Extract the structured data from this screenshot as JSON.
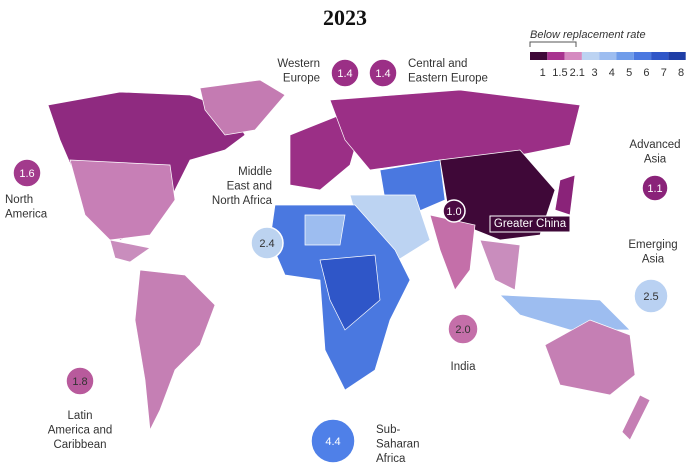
{
  "title": "2023",
  "legend": {
    "caption": "Below replacement rate",
    "colors": [
      "#3f0838",
      "#a8338f",
      "#d58ac0",
      "#bcd3f2",
      "#9dbdf0",
      "#6f9cea",
      "#4a78e0",
      "#2f56c8",
      "#1f3ea6"
    ],
    "labels": [
      "1",
      "1.5",
      "2.1",
      "3",
      "4",
      "5",
      "6",
      "7",
      "8"
    ]
  },
  "regions": [
    {
      "name": [
        "North",
        "America"
      ],
      "value": "1.6",
      "color": "#a23a8c"
    },
    {
      "name": [
        "Western",
        "Europe"
      ],
      "value": "1.4",
      "color": "#9b2f86"
    },
    {
      "name": [
        "Central and",
        "Eastern Europe"
      ],
      "value": "1.4",
      "color": "#9b2f86"
    },
    {
      "name": [
        "Middle",
        "East and",
        "North Africa"
      ],
      "value": "2.4",
      "color": "#bcd3f0"
    },
    {
      "name": [
        "Greater China"
      ],
      "value": "1.0",
      "color": "#4a0a42"
    },
    {
      "name": [
        "Advanced",
        "Asia"
      ],
      "value": "1.1",
      "color": "#8a2379"
    },
    {
      "name": [
        "Emerging",
        "Asia"
      ],
      "value": "2.5",
      "color": "#b9d1f2"
    },
    {
      "name": [
        "India"
      ],
      "value": "2.0",
      "color": "#c46fa9"
    },
    {
      "name": [
        "Latin",
        "America and",
        "Caribbean"
      ],
      "value": "1.8",
      "color": "#b85a9c"
    },
    {
      "name": [
        "Sub-",
        "Saharan",
        "Africa"
      ],
      "value": "4.4",
      "color": "#4f80e8"
    }
  ]
}
